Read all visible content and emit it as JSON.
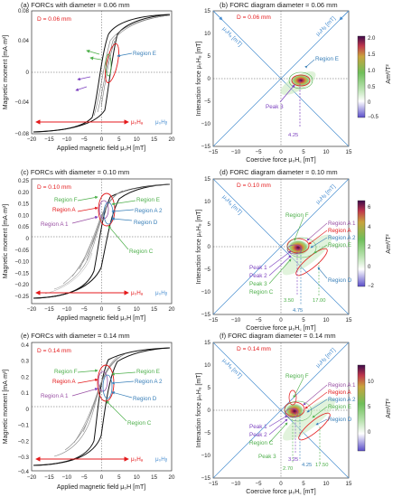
{
  "panels": [
    {
      "id": "a",
      "title": "(a) FORCs with diameter = 0.06 mm",
      "diameter_label": "D = 0.06 mm",
      "xlabel": "Applied magnetic field μ₀H [mT]",
      "ylabel": "Magnetic moment [mA·m²]",
      "xticks": [
        "−20",
        "−15",
        "−10",
        "−5",
        "0",
        "5",
        "10",
        "15",
        "20"
      ],
      "yticks": [
        "0.08",
        "0.04",
        "0",
        "−0.04",
        "−0.08"
      ],
      "arrow_labels": [
        "μ₀Hₐ",
        "μ₀Hᵦ"
      ],
      "regions": [
        {
          "label": "Region E",
          "color": "#377eb8"
        }
      ]
    },
    {
      "id": "b",
      "title": "(b) FORC diagram diameter = 0.06 mm",
      "diameter_label": "D = 0.06 mm",
      "xlabel": "Coercive force μ₀H꜀ [mT]",
      "ylabel": "Interaction force μ₀Hᵤ [mT]",
      "xticks": [
        "−15",
        "−10",
        "−5",
        "0",
        "5",
        "10",
        "15"
      ],
      "yticks": [
        "15",
        "10",
        "5",
        "0",
        "−5",
        "−10",
        "−15"
      ],
      "diag_labels": [
        "μ₀Hₐ [mT]",
        "μ₀Hᵦ [mT]"
      ],
      "regions": [
        {
          "label": "Region E",
          "color": "#377eb8"
        },
        {
          "label": "Peak 3",
          "color": "#7b3fbf"
        }
      ],
      "annotations": [
        "4.25"
      ],
      "colorbar": {
        "ticks": [
          "2.0",
          "1.5",
          "1.0",
          "0.5",
          "0",
          "−0.5"
        ],
        "unit": "Am²/T²"
      }
    },
    {
      "id": "c",
      "title": "(c) FORCs with diameter = 0.10 mm",
      "diameter_label": "D = 0.10 mm",
      "xlabel": "Applied magnetic field μ₀H [mT]",
      "ylabel": "Magnetic moment [mA·m²]",
      "xticks": [
        "−20",
        "−15",
        "−10",
        "−5",
        "0",
        "5",
        "10",
        "15",
        "20"
      ],
      "yticks": [
        "0.25",
        "0.20",
        "0.15",
        "0.10",
        "0.05",
        "0",
        "−0.05",
        "−0.10",
        "−0.15",
        "−0.20",
        "−0.25"
      ],
      "arrow_labels": [
        "μ₀Hₐ",
        "μ₀Hᵦ"
      ],
      "regions": [
        {
          "label": "Region F",
          "color": "#4daf4a"
        },
        {
          "label": "Region A",
          "color": "#e41a1c"
        },
        {
          "label": "Region A 1",
          "color": "#984ea3"
        },
        {
          "label": "Region E",
          "color": "#4daf4a"
        },
        {
          "label": "Region A 2",
          "color": "#377eb8"
        },
        {
          "label": "Region D",
          "color": "#377eb8"
        },
        {
          "label": "Region C",
          "color": "#4daf4a"
        }
      ]
    },
    {
      "id": "d",
      "title": "(d) FORC diagram diameter = 0.10 mm",
      "diameter_label": "D = 0.10 mm",
      "xlabel": "Coercive force μ₀H꜀ [mT]",
      "ylabel": "Interaction force μ₀Hᵤ [mT]",
      "xticks": [
        "−15",
        "−10",
        "−5",
        "0",
        "5",
        "10",
        "15"
      ],
      "yticks": [
        "15",
        "10",
        "5",
        "0",
        "−5",
        "−10",
        "−15"
      ],
      "diag_labels": [
        "μ₀Hₐ [mT]",
        "μ₀Hᵦ [mT]"
      ],
      "regions": [
        {
          "label": "Region F",
          "color": "#4daf4a"
        },
        {
          "label": "Region A 1",
          "color": "#984ea3"
        },
        {
          "label": "Region A",
          "color": "#e41a1c"
        },
        {
          "label": "Region A 2",
          "color": "#377eb8"
        },
        {
          "label": "Region E",
          "color": "#4daf4a"
        },
        {
          "label": "Region D",
          "color": "#377eb8"
        },
        {
          "label": "Peak 1",
          "color": "#7b3fbf"
        },
        {
          "label": "Peak 2",
          "color": "#7b3fbf"
        },
        {
          "label": "Peak 3",
          "color": "#4daf4a"
        },
        {
          "label": "Region C",
          "color": "#4daf4a"
        }
      ],
      "annotations": [
        "3.50",
        "4.75",
        "17.00"
      ],
      "colorbar": {
        "ticks": [
          "6",
          "4",
          "2",
          "0",
          "−2"
        ],
        "unit": "Am²/T²"
      }
    },
    {
      "id": "e",
      "title": "(e) FORCs with diameter = 0.14 mm",
      "diameter_label": "D = 0.14 mm",
      "xlabel": "Applied magnetic field μ₀H [mT]",
      "ylabel": "Magnetic moment [mA·m²]",
      "xticks": [
        "−20",
        "−15",
        "−10",
        "−5",
        "0",
        "5",
        "10",
        "15",
        "20"
      ],
      "yticks": [
        "0.4",
        "0.3",
        "0.2",
        "0.1",
        "0",
        "−0.1",
        "−0.2",
        "−0.3",
        "−0.4"
      ],
      "arrow_labels": [
        "μ₀Hₐ",
        "μ₀Hᵦ"
      ],
      "regions": [
        {
          "label": "Region F",
          "color": "#4daf4a"
        },
        {
          "label": "Region A",
          "color": "#e41a1c"
        },
        {
          "label": "Region A 1",
          "color": "#984ea3"
        },
        {
          "label": "Region E",
          "color": "#4daf4a"
        },
        {
          "label": "Region A 2",
          "color": "#377eb8"
        },
        {
          "label": "Region D",
          "color": "#377eb8"
        },
        {
          "label": "Region C",
          "color": "#4daf4a"
        }
      ]
    },
    {
      "id": "f",
      "title": "(f) FORC diagram diameter = 0.14 mm",
      "diameter_label": "D = 0.14 mm",
      "xlabel": "Coercive force μ₀H꜀ [mT]",
      "ylabel": "Interaction force μ₀Hᵤ [mT]",
      "xticks": [
        "−15",
        "−10",
        "−5",
        "0",
        "5",
        "10",
        "15"
      ],
      "yticks": [
        "15",
        "10",
        "5",
        "0",
        "−5",
        "−10",
        "−15"
      ],
      "diag_labels": [
        "μ₀Hₐ [mT]",
        "μ₀Hᵦ [mT]"
      ],
      "regions": [
        {
          "label": "Region F",
          "color": "#4daf4a"
        },
        {
          "label": "Region A 1",
          "color": "#984ea3"
        },
        {
          "label": "Region A",
          "color": "#e41a1c"
        },
        {
          "label": "Region A 2",
          "color": "#377eb8"
        },
        {
          "label": "Region E",
          "color": "#4daf4a"
        },
        {
          "label": "Region D",
          "color": "#377eb8"
        },
        {
          "label": "Peak 1",
          "color": "#7b3fbf"
        },
        {
          "label": "Peak 2",
          "color": "#7b3fbf"
        },
        {
          "label": "Region C",
          "color": "#4daf4a"
        },
        {
          "label": "Peak 3",
          "color": "#4daf4a"
        }
      ],
      "annotations": [
        "2.70",
        "3.25",
        "4.25",
        "17.50"
      ],
      "colorbar": {
        "ticks": [
          "10",
          "5",
          "0"
        ],
        "unit": "Am²/T²"
      }
    }
  ],
  "chart_data": [
    {
      "type": "line",
      "title": "(a) FORCs with diameter = 0.06 mm",
      "xlabel": "Applied magnetic field μ₀H [mT]",
      "ylabel": "Magnetic moment [mA·m²]",
      "xlim": [
        -20,
        20
      ],
      "ylim": [
        -0.08,
        0.08
      ],
      "series": [
        {
          "values": []
        }
      ]
    },
    {
      "type": "heatmap",
      "title": "(b) FORC diagram diameter = 0.06 mm",
      "xlabel": "Coercive force μ₀H꜀ [mT]",
      "ylabel": "Interaction force μ₀Hᵤ [mT]",
      "xlim": [
        -15,
        15
      ],
      "ylim": [
        -15,
        15
      ],
      "peaks": [
        {
          "x": 4.25,
          "y": 0
        }
      ],
      "colorbar_range": [
        -0.5,
        2.0
      ]
    },
    {
      "type": "line",
      "title": "(c) FORCs with diameter = 0.10 mm",
      "xlabel": "Applied magnetic field μ₀H [mT]",
      "ylabel": "Magnetic moment [mA·m²]",
      "xlim": [
        -20,
        20
      ],
      "ylim": [
        -0.25,
        0.25
      ],
      "series": [
        {
          "values": []
        }
      ]
    },
    {
      "type": "heatmap",
      "title": "(d) FORC diagram diameter = 0.10 mm",
      "xlabel": "Coercive force μ₀H꜀ [mT]",
      "ylabel": "Interaction force μ₀Hᵤ [mT]",
      "xlim": [
        -15,
        15
      ],
      "ylim": [
        -15,
        15
      ],
      "peaks": [
        {
          "x": 3.5,
          "y": 0
        },
        {
          "x": 4.75,
          "y": 0
        },
        {
          "x": 17.0,
          "y": -2
        }
      ],
      "colorbar_range": [
        -2,
        7
      ]
    },
    {
      "type": "line",
      "title": "(e) FORCs with diameter = 0.14 mm",
      "xlabel": "Applied magnetic field μ₀H [mT]",
      "ylabel": "Magnetic moment [mA·m²]",
      "xlim": [
        -20,
        20
      ],
      "ylim": [
        -0.4,
        0.4
      ],
      "series": [
        {
          "values": []
        }
      ]
    },
    {
      "type": "heatmap",
      "title": "(f) FORC diagram diameter = 0.14 mm",
      "xlabel": "Coercive force μ₀H꜀ [mT]",
      "ylabel": "Interaction force μ₀Hᵤ [mT]",
      "xlim": [
        -15,
        15
      ],
      "ylim": [
        -15,
        15
      ],
      "peaks": [
        {
          "x": 2.7,
          "y": 0
        },
        {
          "x": 3.25,
          "y": 0
        },
        {
          "x": 4.25,
          "y": 0
        },
        {
          "x": 17.5,
          "y": -2
        }
      ],
      "colorbar_range": [
        -2,
        12
      ]
    }
  ],
  "colors": {
    "black_curve": "#111111",
    "grey_curve": "#9a9a9a",
    "blue_axis": "#4a8fd1",
    "red_label": "#e41a1c",
    "green": "#4daf4a",
    "purple": "#984ea3",
    "blue": "#377eb8"
  }
}
